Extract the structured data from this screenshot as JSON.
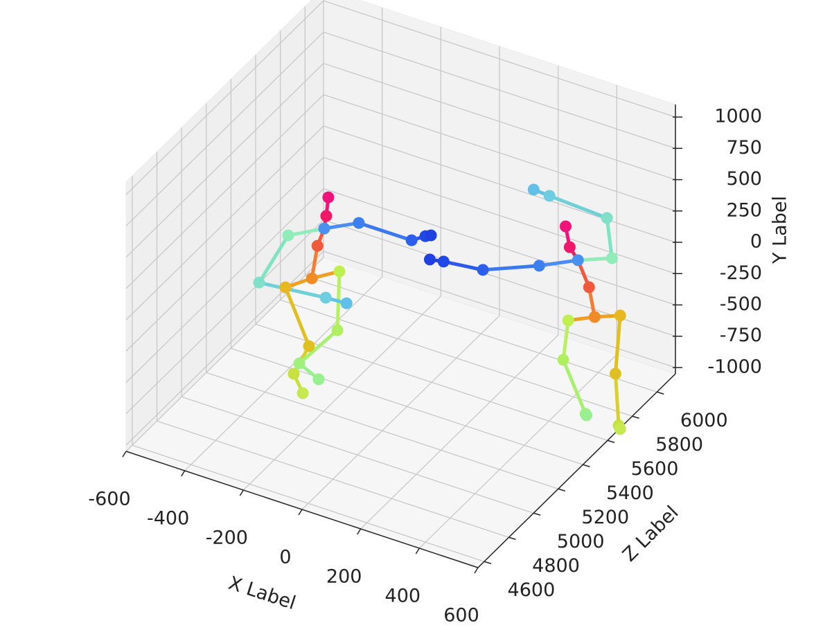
{
  "chart_data": {
    "type": "skeleton3d",
    "xlabel": "X Label",
    "ylabel": "Y Label",
    "zlabel": "Z Label",
    "xlim": [
      -600,
      600
    ],
    "ylim": [
      -1050,
      1100
    ],
    "zlim": [
      4550,
      6150
    ],
    "xticks": [
      -600,
      -400,
      -200,
      0,
      200,
      400,
      600
    ],
    "yticks": [
      -1000,
      -750,
      -500,
      -250,
      0,
      250,
      500,
      750,
      1000
    ],
    "zticks": [
      4600,
      4800,
      5000,
      5200,
      5400,
      5600,
      5800,
      6000
    ],
    "grid": true,
    "skeletons": [
      {
        "x": [
          -226,
          -233,
          -240,
          -263,
          -282,
          -372,
          -292,
          -344,
          -313,
          -188,
          -195,
          -325,
          -259,
          -363,
          -462,
          -235,
          -164,
          -122,
          58,
          105,
          124
        ],
        "y": [
          542,
          388,
          282,
          126,
          -148,
          -290,
          -697,
          -958,
          -1089,
          -20,
          -495,
          -861,
          -936,
          132,
          -321,
          -266,
          -256,
          418,
          419,
          488,
          509
        ],
        "z": [
          5300,
          5300,
          5300,
          5300,
          5300,
          5300,
          5300,
          5300,
          5300,
          5300,
          5300,
          5300,
          5300,
          5300,
          5300,
          5300,
          5300,
          5300,
          5300,
          5300,
          5300
        ],
        "colors": [
          "#f0147a",
          "#f0186a",
          "#4a90f0",
          "#f05a3c",
          "#f08c28",
          "#e8b820",
          "#e0c020",
          "#c8e040",
          "#c8e850",
          "#c0f050",
          "#b0f060",
          "#a0f080",
          "#98f090",
          "#90ecb8",
          "#80e0c8",
          "#70cce0",
          "#60c0e8",
          "#3c80f0",
          "#2c60ec",
          "#2048e8",
          "#2040e0"
        ],
        "bones": [
          [
            0,
            1
          ],
          [
            1,
            2
          ],
          [
            2,
            3
          ],
          [
            3,
            4
          ],
          [
            4,
            5
          ],
          [
            4,
            9
          ],
          [
            5,
            6
          ],
          [
            6,
            7
          ],
          [
            7,
            8
          ],
          [
            9,
            10
          ],
          [
            10,
            11
          ],
          [
            11,
            12
          ],
          [
            2,
            13
          ],
          [
            13,
            14
          ],
          [
            14,
            15
          ],
          [
            15,
            16
          ],
          [
            2,
            17
          ],
          [
            17,
            18
          ],
          [
            18,
            19
          ],
          [
            19,
            20
          ]
        ],
        "bone_colors": [
          "#f0147a",
          "#e8285a",
          "#f05a3c",
          "#f08030",
          "#f0a020",
          "#f0a020",
          "#e0c020",
          "#d8d030",
          "#c8e040",
          "#b8f060",
          "#a8f070",
          "#98f090",
          "#90ecb8",
          "#80e4c0",
          "#70d0d8",
          "#60c4e8",
          "#4a8cf0",
          "#3c78f0",
          "#2c58ec",
          "#2040e0"
        ]
      },
      {
        "x": [
          499,
          513,
          541,
          579,
          598,
          685,
          669,
          680,
          685,
          508,
          491,
          567,
          570,
          657,
          640,
          444,
          390,
          409,
          217,
          83,
          36
        ],
        "y": [
          678,
          523,
          440,
          254,
          31,
          110,
          -367,
          -772,
          -796,
          -66,
          -394,
          -766,
          -776,
          546,
          854,
          879,
          887,
          294,
          112,
          75,
          55
        ],
        "z": [
          5500,
          5500,
          5500,
          5500,
          5500,
          5500,
          5500,
          5500,
          5500,
          5500,
          5500,
          5500,
          5500,
          5500,
          5500,
          5500,
          5500,
          5500,
          5500,
          5500,
          5500
        ],
        "colors": [
          "#f0147a",
          "#f0186a",
          "#4a90f0",
          "#f05a3c",
          "#f08c28",
          "#e8b820",
          "#e0c020",
          "#c8e040",
          "#c8e850",
          "#c0f050",
          "#b0f060",
          "#a0f080",
          "#98f090",
          "#90ecb8",
          "#80e0c8",
          "#70cce0",
          "#60c0e8",
          "#3c80f0",
          "#2c60ec",
          "#2048e8",
          "#2040e0"
        ],
        "bones": [
          [
            0,
            1
          ],
          [
            1,
            2
          ],
          [
            2,
            3
          ],
          [
            3,
            4
          ],
          [
            4,
            5
          ],
          [
            4,
            9
          ],
          [
            5,
            6
          ],
          [
            6,
            7
          ],
          [
            7,
            8
          ],
          [
            9,
            10
          ],
          [
            10,
            11
          ],
          [
            11,
            12
          ],
          [
            2,
            13
          ],
          [
            13,
            14
          ],
          [
            14,
            15
          ],
          [
            15,
            16
          ],
          [
            2,
            17
          ],
          [
            17,
            18
          ],
          [
            18,
            19
          ],
          [
            19,
            20
          ]
        ],
        "bone_colors": [
          "#f0147a",
          "#e8285a",
          "#f05a3c",
          "#f08030",
          "#f0a020",
          "#f0a020",
          "#e0c020",
          "#d8d030",
          "#c8e040",
          "#b8f060",
          "#a8f070",
          "#98f090",
          "#90ecb8",
          "#80e4c0",
          "#70d0d8",
          "#60c4e8",
          "#4a8cf0",
          "#3c78f0",
          "#2c58ec",
          "#2040e0"
        ]
      }
    ]
  }
}
